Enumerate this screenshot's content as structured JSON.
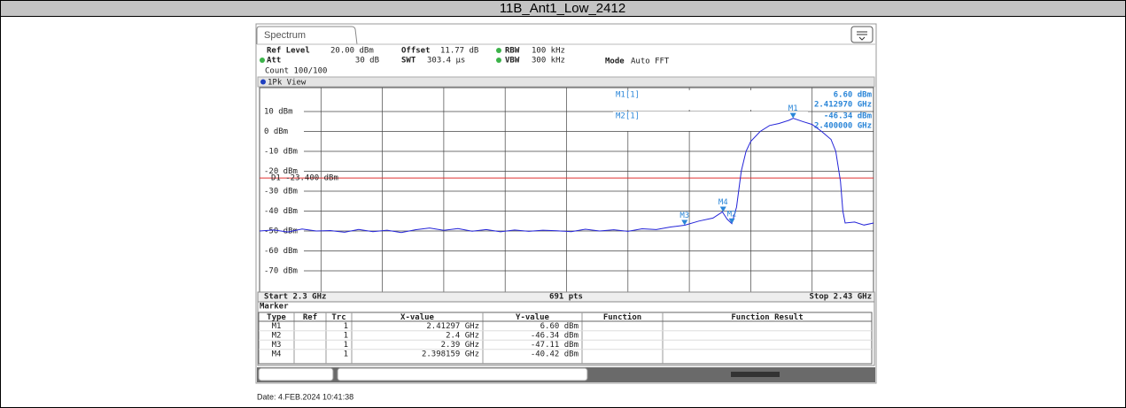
{
  "header": {
    "title": "11B_Ant1_Low_2412"
  },
  "screen": {
    "tab": "Spectrum",
    "settings": [
      {
        "label": "Ref Level",
        "value": "20.00 dBm"
      },
      {
        "label": "Offset",
        "value": "11.77 dB"
      },
      {
        "label": "RBW",
        "value": "100 kHz"
      },
      {
        "label": "Att",
        "value": "30 dB"
      },
      {
        "label": "SWT",
        "value": "303.4 µs"
      },
      {
        "label": "VBW",
        "value": "300 kHz"
      },
      {
        "label": "Mode",
        "value": "Auto FFT"
      }
    ],
    "count": "Count 100/100",
    "view": "1Pk View",
    "plot": {
      "xlim": [
        2.3,
        2.43
      ],
      "ylim": [
        -80,
        20
      ],
      "yticks": [
        {
          "value": 10,
          "label": "10 dBm"
        },
        {
          "value": 0,
          "label": "0 dBm"
        },
        {
          "value": -10,
          "label": "-10 dBm"
        },
        {
          "value": -20,
          "label": "-20 dBm"
        },
        {
          "value": -30,
          "label": "-30 dBm"
        },
        {
          "value": -40,
          "label": "-40 dBm"
        },
        {
          "value": -50,
          "label": "-50 dBm"
        },
        {
          "value": -60,
          "label": "-60 dBm"
        },
        {
          "value": -70,
          "label": "-70 dBm"
        }
      ],
      "display_line": {
        "value": -23.4,
        "label": "D1 -23.400 dBm"
      },
      "marker_readout": [
        {
          "name": "M1[1]",
          "level": "6.60 dBm",
          "freq": "2.412970 GHz"
        },
        {
          "name": "M2[1]",
          "level": "-46.34 dBm",
          "freq": "2.400000 GHz"
        }
      ],
      "trace": {
        "x": [
          2.3,
          2.303,
          2.306,
          2.309,
          2.312,
          2.315,
          2.318,
          2.321,
          2.324,
          2.327,
          2.33,
          2.333,
          2.336,
          2.339,
          2.342,
          2.345,
          2.348,
          2.351,
          2.354,
          2.357,
          2.36,
          2.363,
          2.366,
          2.369,
          2.372,
          2.375,
          2.378,
          2.381,
          2.384,
          2.387,
          2.39,
          2.393,
          2.396,
          2.398,
          2.399,
          2.4,
          2.401,
          2.402,
          2.403,
          2.404,
          2.406,
          2.408,
          2.41,
          2.412,
          2.413,
          2.415,
          2.417,
          2.419,
          2.421,
          2.422,
          2.423,
          2.4235,
          2.424,
          2.426,
          2.428,
          2.43
        ],
        "values": [
          -50,
          -49.5,
          -50.5,
          -49,
          -50,
          -49.8,
          -50.6,
          -49.2,
          -50.3,
          -49.6,
          -50.8,
          -49.4,
          -48.5,
          -49.7,
          -48.8,
          -50.1,
          -49.3,
          -50.4,
          -49.5,
          -50.2,
          -49.6,
          -49.9,
          -50.3,
          -49.1,
          -50,
          -49.4,
          -50.2,
          -48.9,
          -49.3,
          -48,
          -47.1,
          -45,
          -43.5,
          -40.4,
          -44,
          -46.3,
          -38,
          -20,
          -10,
          -5,
          0,
          3,
          4,
          5.5,
          6.6,
          5,
          3.5,
          0,
          -4,
          -10,
          -25,
          -40,
          -46,
          -45.5,
          -47,
          -46
        ]
      }
    },
    "start": "Start 2.3 GHz",
    "points": "691 pts",
    "stop": "Stop 2.43 GHz",
    "marker_table": {
      "title": "Marker",
      "columns": [
        "Type",
        "Ref",
        "Trc",
        "X-value",
        "Y-value",
        "Function",
        "Function Result"
      ],
      "rows": [
        {
          "type": "M1",
          "trc": "1",
          "x_label": "2.41297 GHz",
          "y_label": "6.60 dBm",
          "x": 2.41297,
          "y": 6.6
        },
        {
          "type": "M2",
          "trc": "1",
          "x_label": "2.4 GHz",
          "y_label": "-46.34 dBm",
          "x": 2.4,
          "y": -46.34
        },
        {
          "type": "M3",
          "trc": "1",
          "x_label": "2.39 GHz",
          "y_label": "-47.11 dBm",
          "x": 2.39,
          "y": -47.11
        },
        {
          "type": "M4",
          "trc": "1",
          "x_label": "2.398159 GHz",
          "y_label": "-40.42 dBm",
          "x": 2.398159,
          "y": -40.42
        }
      ]
    }
  },
  "date": "Date: 4.FEB.2024  10:41:38"
}
